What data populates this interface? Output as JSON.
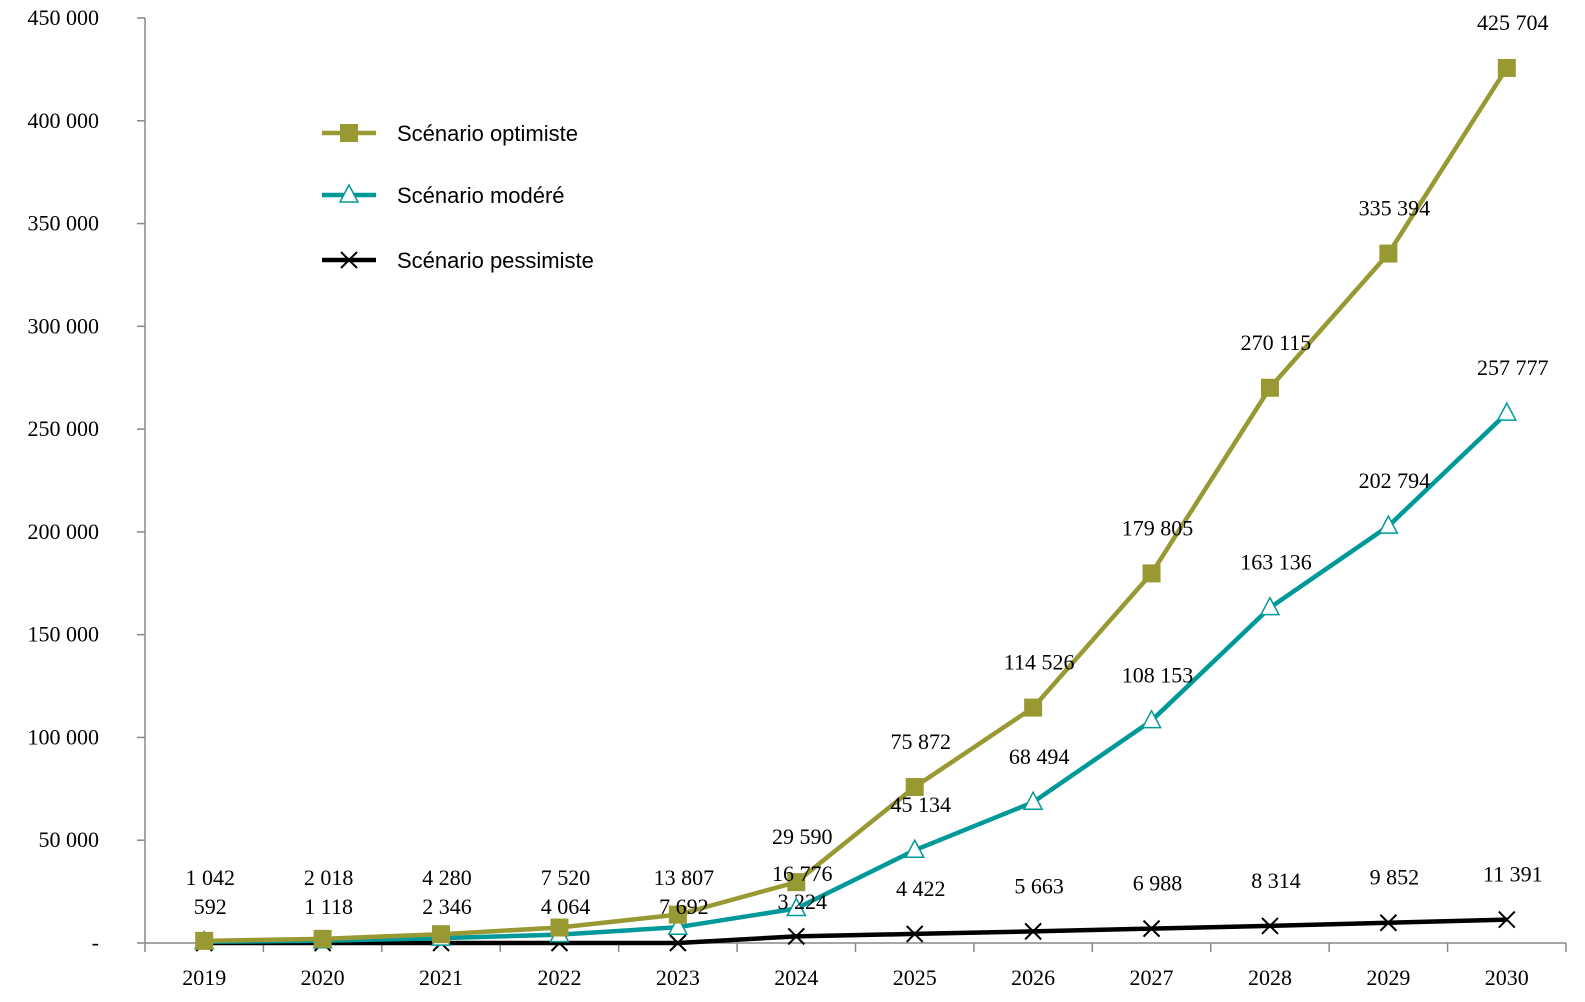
{
  "chart_data": {
    "type": "line",
    "title": "",
    "xlabel": "",
    "ylabel": "",
    "categories": [
      "2019",
      "2020",
      "2021",
      "2022",
      "2023",
      "2024",
      "2025",
      "2026",
      "2027",
      "2028",
      "2029",
      "2030"
    ],
    "ylim": [
      0,
      450000
    ],
    "y_ticks": [
      0,
      50000,
      100000,
      150000,
      200000,
      250000,
      300000,
      350000,
      400000,
      450000
    ],
    "y_tick_labels": [
      "-",
      "50 000",
      "100 000",
      "150 000",
      "200 000",
      "250 000",
      "300 000",
      "350 000",
      "400 000",
      "450 000"
    ],
    "grid": false,
    "legend_position": "top-left",
    "series": [
      {
        "name": "Scénario optimiste",
        "color": "#999933",
        "marker": "square",
        "values": [
          1042,
          2018,
          4280,
          7520,
          13807,
          29590,
          75872,
          114526,
          179805,
          270115,
          335394,
          425704
        ],
        "labels": [
          "1 042",
          "2 018",
          "4 280",
          "7 520",
          "13 807",
          "29 590",
          "75 872",
          "114 526",
          "179 805",
          "270 115",
          "335 394",
          "425 704"
        ]
      },
      {
        "name": "Scénario modéré",
        "color": "#009999",
        "marker": "triangle",
        "values": [
          592,
          1118,
          2346,
          4064,
          7692,
          16776,
          45134,
          68494,
          108153,
          163136,
          202794,
          257777
        ],
        "labels": [
          "592",
          "1 118",
          "2 346",
          "4 064",
          "7 692",
          "16 776",
          "45 134",
          "68 494",
          "108 153",
          "163 136",
          "202 794",
          "257 777"
        ]
      },
      {
        "name": "Scénario pessimiste",
        "color": "#000000",
        "marker": "x",
        "values": [
          null,
          null,
          null,
          null,
          null,
          3224,
          4422,
          5663,
          6988,
          8314,
          9852,
          11391
        ],
        "labels": [
          "",
          "",
          "",
          "",
          "",
          "3 224",
          "4 422",
          "5 663",
          "6 988",
          "8 314",
          "9 852",
          "11 391"
        ]
      }
    ]
  }
}
